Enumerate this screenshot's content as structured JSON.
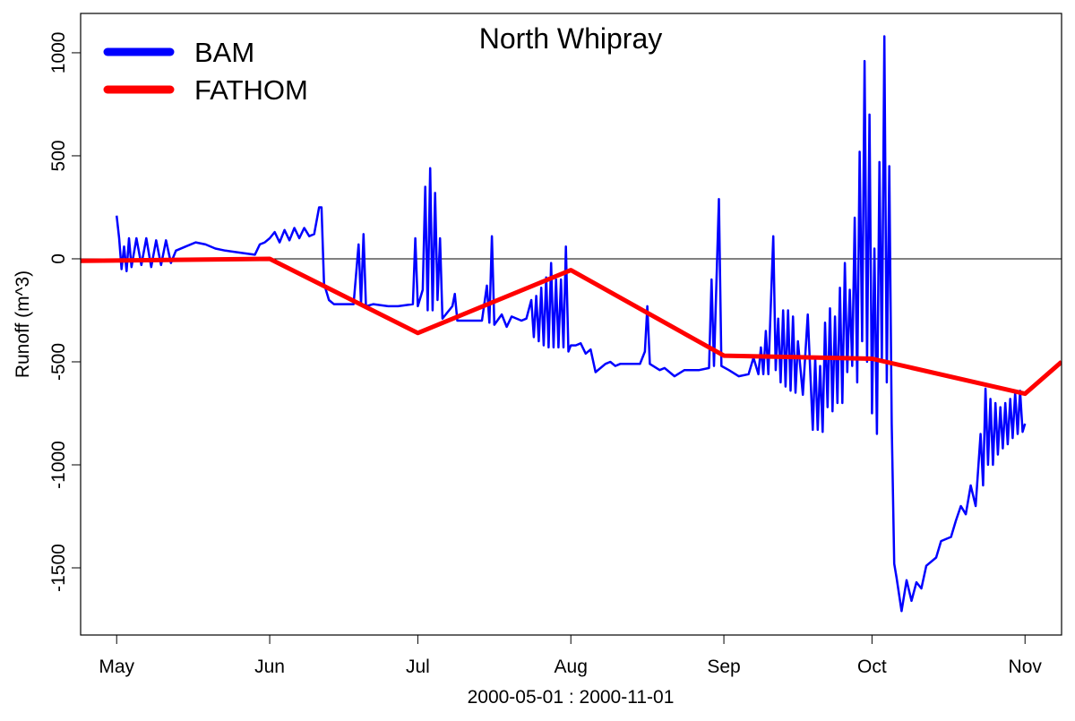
{
  "chart_data": {
    "type": "line",
    "title": "North Whipray",
    "x_label": "2000-05-01 : 2000-11-01",
    "y_label": "Runoff (m^3)",
    "xlim": [
      -7.3,
      191.4
    ],
    "ylim": [
      -1826,
      1191
    ],
    "xticks": [
      {
        "value": 0,
        "label": "May"
      },
      {
        "value": 31,
        "label": "Jun"
      },
      {
        "value": 61,
        "label": "Jul"
      },
      {
        "value": 92,
        "label": "Aug"
      },
      {
        "value": 123,
        "label": "Sep"
      },
      {
        "value": 153,
        "label": "Oct"
      },
      {
        "value": 184,
        "label": "Nov"
      }
    ],
    "yticks": [
      -1500,
      -1000,
      -500,
      0,
      500,
      1000
    ],
    "legend": "top-left",
    "series": [
      {
        "name": "BAM",
        "color": "#0000ff",
        "x": [
          0,
          0.5,
          1,
          1.5,
          2,
          2.5,
          3,
          4,
          5,
          6,
          7,
          8,
          9,
          10,
          11,
          12,
          14,
          16,
          18,
          20,
          22,
          25,
          28,
          29,
          30,
          31,
          32,
          33,
          34,
          35,
          36,
          37,
          38,
          39,
          40,
          41,
          41.5,
          42,
          43,
          44,
          46,
          48,
          49,
          49.5,
          50,
          50.5,
          52,
          55,
          57,
          60,
          60.5,
          61,
          62,
          62.5,
          63,
          63.5,
          64,
          64.5,
          65,
          65.5,
          66,
          68,
          68.5,
          69,
          72,
          74,
          75,
          75.5,
          76,
          76.5,
          78,
          79,
          80,
          82,
          83,
          84,
          84.5,
          85,
          85.5,
          86,
          86.5,
          87,
          87.5,
          88,
          88.5,
          89,
          89.5,
          90,
          90.5,
          91,
          91.5,
          92,
          93,
          94,
          95,
          96,
          97,
          99,
          100,
          101,
          102,
          104,
          106,
          107,
          107.5,
          108,
          110,
          111,
          112,
          113,
          115,
          118,
          120,
          120.5,
          121,
          122,
          122.5,
          124,
          126,
          128,
          129,
          130,
          130.5,
          131,
          131.5,
          132,
          133,
          133.5,
          134,
          134.5,
          135,
          135.5,
          136,
          136.5,
          137,
          137.5,
          138,
          139,
          140,
          141,
          141.5,
          142,
          142.5,
          143,
          143.5,
          144,
          144.5,
          145,
          145.5,
          146,
          146.5,
          147,
          147.5,
          148,
          148.5,
          149,
          149.5,
          150,
          150.5,
          151,
          151.5,
          152,
          152.5,
          153,
          153.5,
          154,
          154.5,
          155,
          155.5,
          156,
          156.5,
          157,
          157.5,
          158,
          159,
          160,
          161,
          162,
          163,
          164,
          166,
          167,
          169,
          170,
          171,
          172,
          173,
          174,
          175,
          175.5,
          176,
          176.5,
          177,
          177.5,
          178,
          178.5,
          179,
          179.5,
          180,
          180.5,
          181,
          181.5,
          182,
          182.5,
          183,
          183.5,
          184
        ],
        "values": [
          210,
          100,
          -50,
          60,
          -60,
          100,
          -40,
          100,
          -30,
          100,
          -40,
          90,
          -30,
          90,
          -20,
          40,
          60,
          80,
          70,
          50,
          40,
          30,
          20,
          70,
          80,
          100,
          130,
          80,
          140,
          90,
          150,
          100,
          150,
          110,
          120,
          250,
          250,
          -120,
          -200,
          -220,
          -220,
          -220,
          70,
          -220,
          120,
          -230,
          -220,
          -230,
          -230,
          -220,
          100,
          -230,
          -150,
          350,
          -250,
          440,
          -250,
          320,
          -200,
          100,
          -290,
          -230,
          -170,
          -300,
          -300,
          -300,
          -130,
          -310,
          110,
          -320,
          -270,
          -330,
          -280,
          -300,
          -290,
          -200,
          -380,
          -180,
          -400,
          -140,
          -420,
          -90,
          -430,
          -20,
          -430,
          -100,
          -430,
          -100,
          -430,
          60,
          -450,
          -420,
          -420,
          -410,
          -460,
          -440,
          -550,
          -510,
          -500,
          -520,
          -510,
          -510,
          -510,
          -450,
          -230,
          -510,
          -540,
          -530,
          -550,
          -570,
          -540,
          -540,
          -530,
          -100,
          -520,
          290,
          -520,
          -540,
          -570,
          -560,
          -480,
          -560,
          -430,
          -560,
          -350,
          -560,
          110,
          -540,
          -290,
          -600,
          -250,
          -620,
          -250,
          -640,
          -280,
          -650,
          -400,
          -660,
          -270,
          -830,
          -480,
          -830,
          -520,
          -840,
          -310,
          -720,
          -240,
          -740,
          -280,
          -700,
          -140,
          -700,
          -20,
          -550,
          -150,
          -520,
          200,
          -600,
          520,
          -400,
          960,
          -500,
          700,
          -750,
          50,
          -850,
          470,
          -500,
          1080,
          -600,
          450,
          -800,
          -1480,
          -1550,
          -1710,
          -1560,
          -1660,
          -1570,
          -1600,
          -1490,
          -1450,
          -1370,
          -1350,
          -1270,
          -1200,
          -1240,
          -1100,
          -1200,
          -850,
          -1100,
          -630,
          -1000,
          -680,
          -1000,
          -700,
          -950,
          -720,
          -920,
          -700,
          -900,
          -680,
          -870,
          -650,
          -850,
          -640,
          -840,
          -800
        ]
      },
      {
        "name": "FATHOM",
        "color": "#ff0000",
        "x": [
          -7.3,
          31,
          61,
          92,
          123,
          153,
          184,
          191.4
        ],
        "values": [
          -10,
          0,
          -360,
          -55,
          -470,
          -485,
          -655,
          -500
        ]
      }
    ]
  }
}
